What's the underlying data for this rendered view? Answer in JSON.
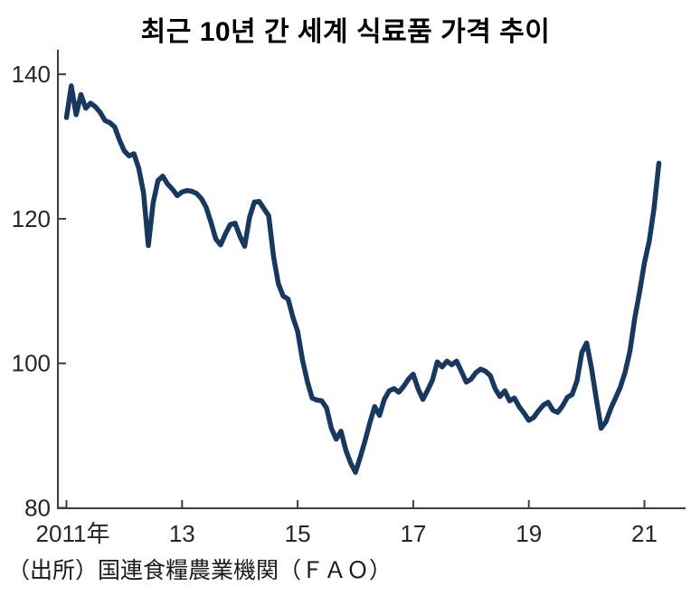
{
  "chart_data": {
    "type": "line",
    "title": "최근 10년 간 세계 식료품 가격 추이",
    "source": "（出所）国連食糧農業機関（ＦＡＯ）",
    "x_start": "2011-01",
    "x_end": "2021-04",
    "x_interval": "monthly",
    "x_tick_labels": [
      "2011年",
      "13",
      "15",
      "17",
      "19",
      "21"
    ],
    "x_tick_positions_months": [
      0,
      24,
      48,
      72,
      96,
      120
    ],
    "y_ticks": [
      80,
      100,
      120,
      140
    ],
    "ylim": [
      80,
      140
    ],
    "grid": false,
    "legend": "none",
    "line_color": "#17395f",
    "axis_color": "#3d3d3d",
    "values": [
      134.0,
      138.4,
      134.4,
      137.2,
      135.3,
      136.0,
      135.5,
      134.7,
      133.6,
      133.3,
      132.7,
      130.9,
      129.4,
      128.7,
      129.0,
      127.0,
      123.6,
      116.3,
      122.2,
      125.3,
      125.9,
      124.8,
      124.1,
      123.2,
      123.7,
      123.9,
      123.8,
      123.5,
      122.8,
      121.6,
      119.5,
      117.2,
      116.4,
      117.9,
      119.2,
      119.4,
      117.6,
      116.2,
      120.2,
      122.3,
      122.4,
      121.4,
      120.4,
      114.7,
      111.0,
      109.3,
      108.9,
      106.4,
      104.4,
      100.5,
      97.5,
      95.2,
      94.9,
      94.8,
      93.8,
      91.0,
      89.5,
      90.6,
      88.0,
      86.2,
      84.9,
      87.0,
      89.3,
      91.8,
      94.0,
      92.8,
      95.0,
      96.2,
      96.5,
      96.0,
      96.8,
      97.8,
      98.5,
      96.5,
      95.0,
      96.3,
      97.7,
      100.2,
      99.5,
      100.3,
      99.8,
      100.3,
      98.9,
      97.4,
      97.8,
      98.7,
      99.2,
      98.9,
      98.3,
      96.5,
      95.4,
      96.2,
      94.8,
      95.2,
      94.0,
      93.1,
      92.1,
      92.5,
      93.4,
      94.2,
      94.6,
      93.5,
      93.2,
      94.1,
      95.3,
      95.7,
      97.6,
      101.5,
      102.8,
      99.4,
      95.1,
      91.0,
      91.9,
      93.7,
      95.2,
      96.7,
      98.8,
      101.7,
      106.3,
      109.9,
      113.9,
      116.9,
      121.4,
      127.7
    ]
  }
}
